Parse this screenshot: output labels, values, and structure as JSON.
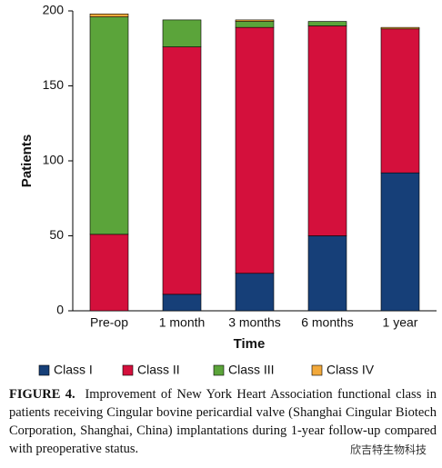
{
  "chart_data": {
    "type": "stacked-bar",
    "y_label": "Patients",
    "x_label": "Time",
    "categories": [
      "Pre-op",
      "1 month",
      "3 months",
      "6 months",
      "1 year"
    ],
    "series": [
      {
        "name": "Class I",
        "color": "#163f78",
        "values": [
          0,
          11,
          25,
          50,
          92
        ]
      },
      {
        "name": "Class II",
        "color": "#d4103c",
        "values": [
          51,
          165,
          164,
          140,
          96
        ]
      },
      {
        "name": "Class III",
        "color": "#5ba43a",
        "values": [
          145,
          18,
          4,
          3,
          0
        ]
      },
      {
        "name": "Class IV",
        "color": "#f2a93b",
        "values": [
          2,
          0,
          1,
          0,
          1
        ]
      }
    ],
    "ylim": [
      0,
      200
    ],
    "yticks": [
      0,
      50,
      100,
      150,
      200
    ]
  },
  "caption_label": "FIGURE 4.",
  "caption_text": "Improvement of New York Heart Association functional class in patients receiving Cingular bovine pericardial valve (Shanghai Cingular Biotech Corporation, Shanghai, China) implantations during 1-year follow-up compared with preoperative status.",
  "watermark": "欣吉特生物科技"
}
